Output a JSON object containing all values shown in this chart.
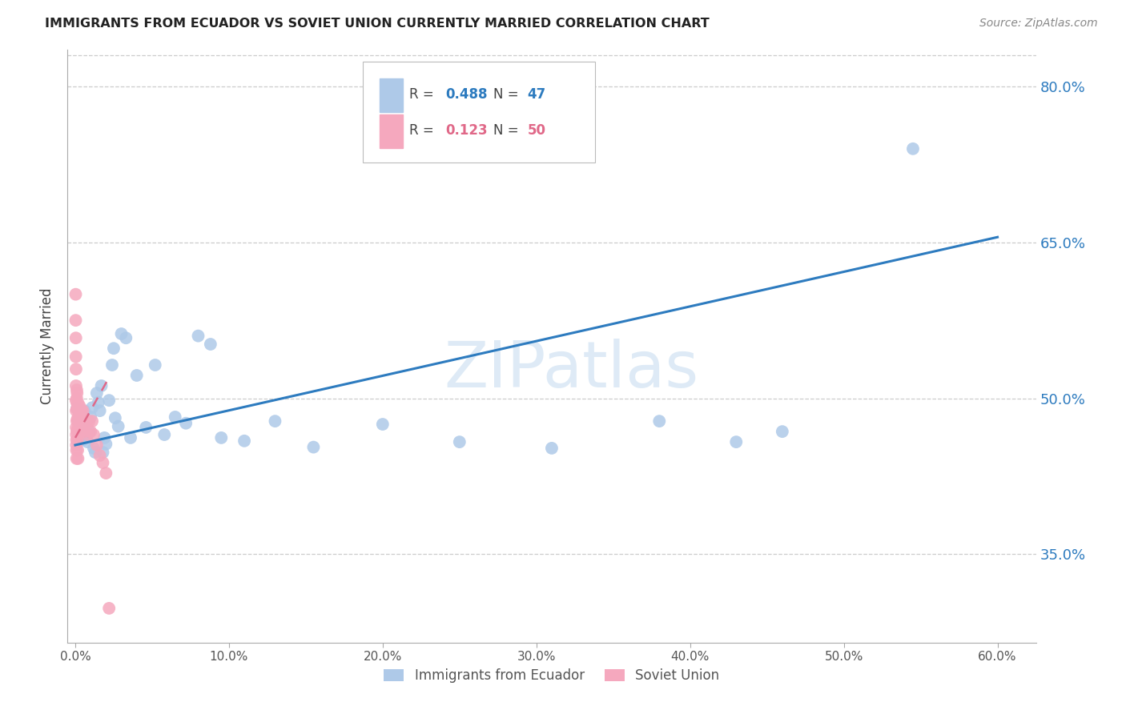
{
  "title": "IMMIGRANTS FROM ECUADOR VS SOVIET UNION CURRENTLY MARRIED CORRELATION CHART",
  "source": "Source: ZipAtlas.com",
  "ylabel": "Currently Married",
  "yticks": [
    0.35,
    0.5,
    0.65,
    0.8
  ],
  "ytick_labels": [
    "35.0%",
    "50.0%",
    "65.0%",
    "80.0%"
  ],
  "ymin": 0.265,
  "ymax": 0.835,
  "xmin": -0.005,
  "xmax": 0.625,
  "ecuador_R": 0.488,
  "ecuador_N": 47,
  "soviet_R": 0.123,
  "soviet_N": 50,
  "ecuador_color": "#aec9e8",
  "soviet_color": "#f5a8be",
  "ecuador_line_color": "#2d7bbf",
  "soviet_line_color": "#e06888",
  "watermark": "ZIPatlas",
  "watermark_color": "#c8ddf0",
  "ecuador_x": [
    0.001,
    0.002,
    0.003,
    0.004,
    0.005,
    0.006,
    0.007,
    0.008,
    0.009,
    0.01,
    0.011,
    0.012,
    0.013,
    0.014,
    0.015,
    0.016,
    0.017,
    0.018,
    0.019,
    0.02,
    0.022,
    0.024,
    0.025,
    0.026,
    0.028,
    0.03,
    0.033,
    0.036,
    0.04,
    0.046,
    0.052,
    0.058,
    0.065,
    0.072,
    0.08,
    0.088,
    0.095,
    0.11,
    0.13,
    0.155,
    0.2,
    0.25,
    0.31,
    0.38,
    0.43,
    0.46,
    0.545
  ],
  "ecuador_y": [
    0.49,
    0.478,
    0.482,
    0.465,
    0.46,
    0.488,
    0.475,
    0.458,
    0.468,
    0.482,
    0.491,
    0.452,
    0.448,
    0.505,
    0.496,
    0.488,
    0.512,
    0.448,
    0.462,
    0.456,
    0.498,
    0.532,
    0.548,
    0.481,
    0.473,
    0.562,
    0.558,
    0.462,
    0.522,
    0.472,
    0.532,
    0.465,
    0.482,
    0.476,
    0.56,
    0.552,
    0.462,
    0.459,
    0.478,
    0.453,
    0.475,
    0.458,
    0.452,
    0.478,
    0.458,
    0.468,
    0.74
  ],
  "soviet_x": [
    0.0003,
    0.0003,
    0.0004,
    0.0004,
    0.0005,
    0.0005,
    0.0005,
    0.0006,
    0.0006,
    0.0007,
    0.0007,
    0.0008,
    0.0008,
    0.0009,
    0.001,
    0.001,
    0.001,
    0.001,
    0.001,
    0.0012,
    0.0012,
    0.0013,
    0.0014,
    0.0015,
    0.0016,
    0.0018,
    0.002,
    0.002,
    0.0022,
    0.0025,
    0.003,
    0.003,
    0.0035,
    0.004,
    0.004,
    0.005,
    0.005,
    0.006,
    0.006,
    0.007,
    0.008,
    0.009,
    0.01,
    0.011,
    0.012,
    0.014,
    0.016,
    0.018,
    0.02,
    0.022
  ],
  "soviet_y": [
    0.6,
    0.575,
    0.558,
    0.54,
    0.528,
    0.512,
    0.498,
    0.488,
    0.472,
    0.465,
    0.455,
    0.46,
    0.45,
    0.442,
    0.508,
    0.5,
    0.49,
    0.478,
    0.468,
    0.505,
    0.495,
    0.48,
    0.47,
    0.46,
    0.45,
    0.442,
    0.495,
    0.482,
    0.49,
    0.48,
    0.492,
    0.478,
    0.468,
    0.488,
    0.478,
    0.488,
    0.475,
    0.48,
    0.468,
    0.475,
    0.465,
    0.478,
    0.468,
    0.478,
    0.465,
    0.455,
    0.445,
    0.438,
    0.428,
    0.298
  ],
  "xticks": [
    0.0,
    0.1,
    0.2,
    0.3,
    0.4,
    0.5,
    0.6
  ],
  "xtick_labels": [
    "0.0%",
    "10.0%",
    "20.0%",
    "30.0%",
    "40.0%",
    "50.0%",
    "60.0%"
  ],
  "ecuador_trend_x0": 0.0,
  "ecuador_trend_y0": 0.455,
  "ecuador_trend_x1": 0.6,
  "ecuador_trend_y1": 0.655,
  "soviet_trend_x0": 0.0,
  "soviet_trend_y0": 0.462,
  "soviet_trend_x1": 0.022,
  "soviet_trend_y1": 0.52
}
